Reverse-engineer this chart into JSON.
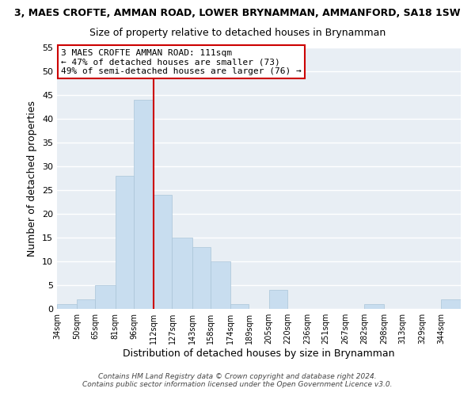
{
  "title_line1": "3, MAES CROFTE, AMMAN ROAD, LOWER BRYNAMMAN, AMMANFORD, SA18 1SW",
  "title_line2": "Size of property relative to detached houses in Brynamman",
  "xlabel": "Distribution of detached houses by size in Brynamman",
  "ylabel": "Number of detached properties",
  "bar_color": "#c8ddef",
  "bar_edgecolor": "#aac4d8",
  "background_color": "#e8eef4",
  "plot_bg_color": "#e8eef4",
  "grid_color": "#ffffff",
  "bin_labels": [
    "34sqm",
    "50sqm",
    "65sqm",
    "81sqm",
    "96sqm",
    "112sqm",
    "127sqm",
    "143sqm",
    "158sqm",
    "174sqm",
    "189sqm",
    "205sqm",
    "220sqm",
    "236sqm",
    "251sqm",
    "267sqm",
    "282sqm",
    "298sqm",
    "313sqm",
    "329sqm",
    "344sqm"
  ],
  "bin_edges": [
    34,
    50,
    65,
    81,
    96,
    112,
    127,
    143,
    158,
    174,
    189,
    205,
    220,
    236,
    251,
    267,
    282,
    298,
    313,
    329,
    344,
    360
  ],
  "counts": [
    1,
    2,
    5,
    28,
    44,
    24,
    15,
    13,
    10,
    1,
    0,
    4,
    0,
    0,
    0,
    0,
    1,
    0,
    0,
    0,
    2
  ],
  "ylim": [
    0,
    55
  ],
  "yticks": [
    0,
    5,
    10,
    15,
    20,
    25,
    30,
    35,
    40,
    45,
    50,
    55
  ],
  "property_line_x": 112,
  "annotation_text_line1": "3 MAES CROFTE AMMAN ROAD: 111sqm",
  "annotation_text_line2": "← 47% of detached houses are smaller (73)",
  "annotation_text_line3": "49% of semi-detached houses are larger (76) →",
  "annotation_box_color": "#ffffff",
  "annotation_box_edgecolor": "#cc0000",
  "property_line_color": "#cc0000",
  "footer_line1": "Contains HM Land Registry data © Crown copyright and database right 2024.",
  "footer_line2": "Contains public sector information licensed under the Open Government Licence v3.0."
}
